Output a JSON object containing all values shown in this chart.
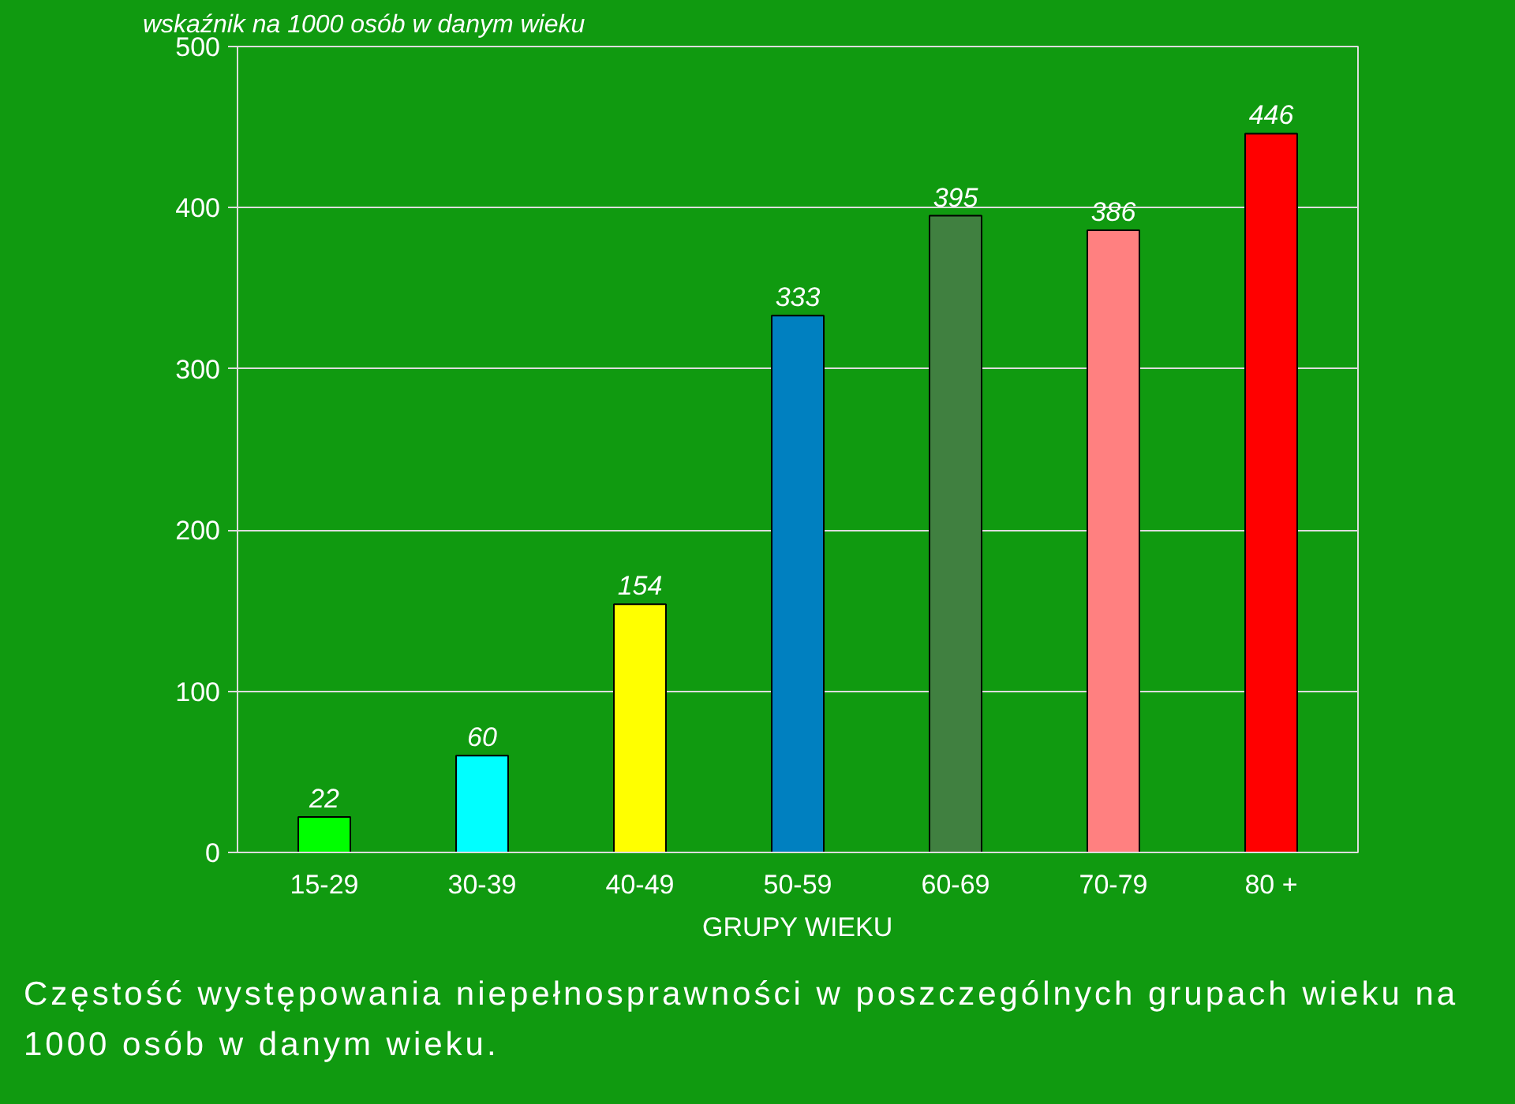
{
  "chart_data": {
    "type": "bar",
    "ylabel": "wskaźnik na 1000 osób w danym wieku",
    "xlabel": "GRUPY WIEKU",
    "categories": [
      "15-29",
      "30-39",
      "40-49",
      "50-59",
      "60-69",
      "70-79",
      "80 +"
    ],
    "values": [
      22,
      60,
      154,
      333,
      395,
      386,
      446
    ],
    "colors": [
      "#00ff00",
      "#00ffff",
      "#ffff00",
      "#0080c0",
      "#408040",
      "#ff8080",
      "#ff0000"
    ],
    "ylim": [
      0,
      500
    ],
    "yticks": [
      0,
      100,
      200,
      300,
      400,
      500
    ],
    "grid": "y",
    "data_labels": true,
    "annotations": [
      "Częstość występowania niepełnosprawności w poszczególnych grupach wieku na 1000 osób w danym wieku."
    ]
  }
}
